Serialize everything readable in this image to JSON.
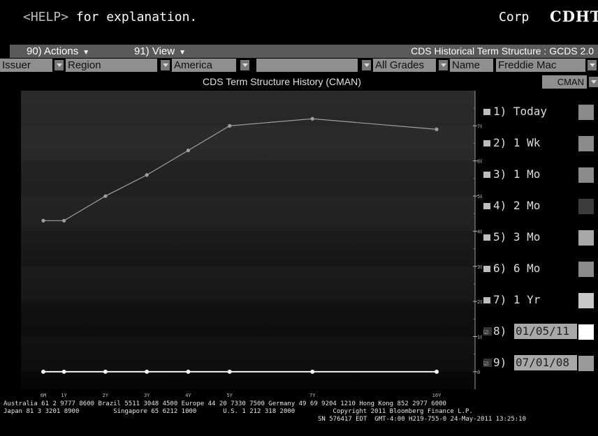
{
  "header": {
    "help_key": "<HELP>",
    "help_text": " for explanation.",
    "market": "Corp",
    "ticker": "CDHT"
  },
  "menubar": {
    "actions_label": "90) Actions",
    "view_label": "91) View",
    "title": "CDS Historical Term Structure : GCDS 2.0"
  },
  "filters": {
    "issuer": "Issuer",
    "region": "Region",
    "region_value": "America",
    "blank": "",
    "grades": "All Grades",
    "name_label": "Name",
    "name_value": "Freddie Mac"
  },
  "subtitle": "CDS Term Structure History (CMAN)",
  "source_select": "CMAN",
  "colors": {
    "series_today": "#a0a0a0",
    "series_0708": "#f2f2f2",
    "today": "#8a8a8a",
    "1wk": "#8a8a8a",
    "1mo": "#8a8a8a",
    "2mo": "#3c3c3c",
    "3mo": "#a8a8a8",
    "6mo": "#8a8a8a",
    "1yr": "#c8c8c8",
    "d1": "#ffffff",
    "d2": "#9a9a9a"
  },
  "legend": [
    {
      "label": "1) Today",
      "type": "box",
      "color_key": "today"
    },
    {
      "label": "2) 1 Wk",
      "type": "box",
      "color_key": "1wk"
    },
    {
      "label": "3) 1 Mo",
      "type": "box",
      "color_key": "1mo"
    },
    {
      "label": "4) 2 Mo",
      "type": "box",
      "color_key": "2mo"
    },
    {
      "label": "5) 3 Mo",
      "type": "box",
      "color_key": "3mo"
    },
    {
      "label": "6) 6 Mo",
      "type": "box",
      "color_key": "6mo"
    },
    {
      "label": "7) 1 Yr",
      "type": "box",
      "color_key": "1yr"
    },
    {
      "label": "8)",
      "type": "check",
      "value": "01/05/11",
      "color_key": "d1"
    },
    {
      "label": "9)",
      "type": "check",
      "value": "07/01/08",
      "color_key": "d2"
    }
  ],
  "chart_data": {
    "type": "line",
    "categories": [
      "6M",
      "1Y",
      "2Y",
      "3Y",
      "4Y",
      "5Y",
      "7Y",
      "10Y"
    ],
    "x_years": [
      0.5,
      1,
      2,
      3,
      4,
      5,
      7,
      10
    ],
    "ylim": [
      -5,
      80
    ],
    "y_ticks": [
      0,
      10,
      20,
      30,
      40,
      50,
      60,
      70
    ],
    "grid": false,
    "series": [
      {
        "values": [
          43,
          43,
          50,
          56,
          63,
          70,
          72,
          69
        ],
        "color_key": "series_today"
      },
      {
        "values": [
          0,
          0,
          0,
          0,
          0,
          0,
          0,
          0
        ],
        "color_key": "series_0708"
      }
    ]
  },
  "footer": {
    "line1": "Australia 61 2 9777 8600 Brazil 5511 3048 4500 Europe 44 20 7330 7500 Germany 49 69 9204 1210 Hong Kong 852 2977 6000",
    "line2": "Japan 81 3 3201 8900         Singapore 65 6212 1000       U.S. 1 212 318 2000          Copyright 2011 Bloomberg Finance L.P.",
    "line3": "SN 576417 EDT  GMT-4:00 H219-755-0 24-May-2011 13:25:10"
  }
}
